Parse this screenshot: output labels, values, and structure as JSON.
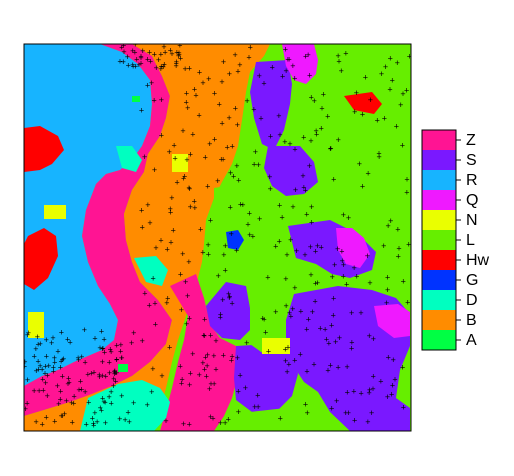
{
  "chart_data": {
    "type": "heatmap",
    "title": "",
    "xlabel": "",
    "ylabel": "",
    "grid": false,
    "legend_position": "right",
    "categories": [
      "Z",
      "S",
      "R",
      "Q",
      "N",
      "L",
      "Hw",
      "G",
      "D",
      "B",
      "A"
    ],
    "colors": {
      "Z": "#ff1493",
      "S": "#7a18ff",
      "R": "#17b4ff",
      "Q": "#ef19ff",
      "N": "#eaff00",
      "L": "#66ee00",
      "Hw": "#ff0000",
      "G": "#0033ff",
      "D": "#00ffc0",
      "B": "#ff8c00",
      "A": "#00ff44"
    },
    "point_marker": "+",
    "point_color": "#000000"
  }
}
